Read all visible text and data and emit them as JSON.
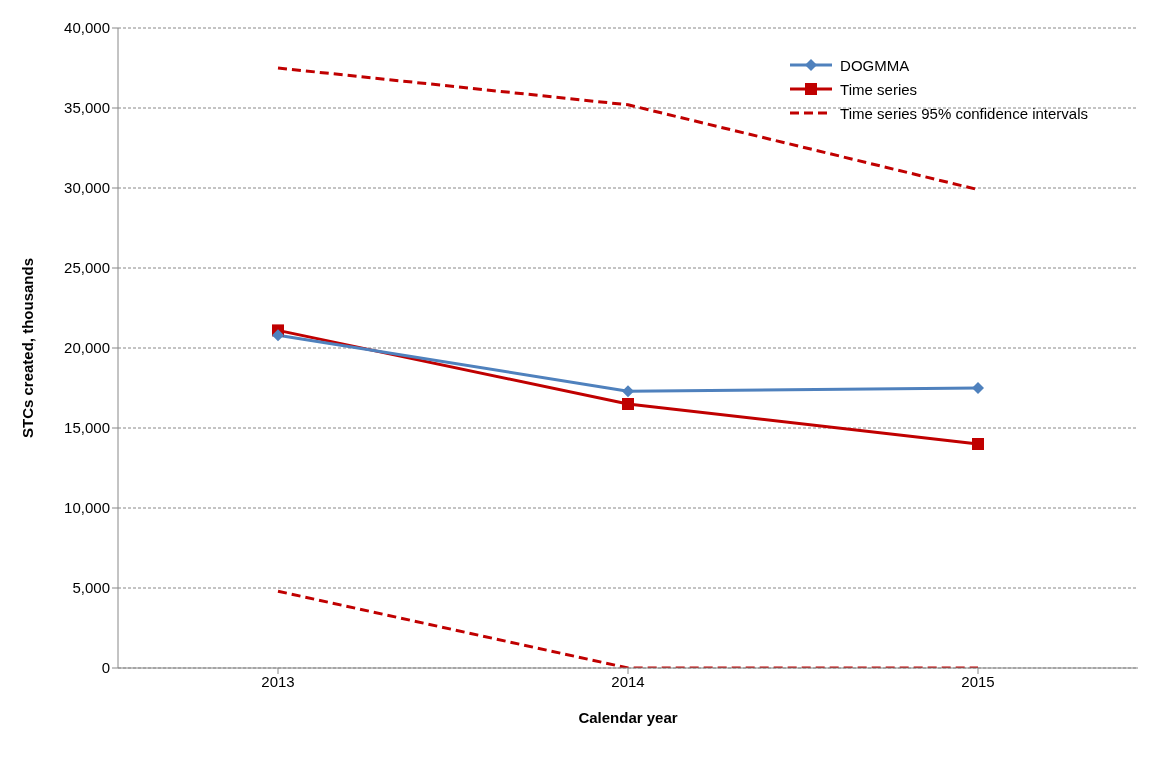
{
  "chart_data": {
    "type": "line",
    "xlabel": "Calendar year",
    "ylabel": "STCs created, thousands",
    "categories": [
      "2013",
      "2014",
      "2015"
    ],
    "series": [
      {
        "name": "DOGMMA",
        "color": "#4f81bd",
        "marker": "diamond",
        "line_style": "solid",
        "values": [
          20800,
          17300,
          17500
        ]
      },
      {
        "name": "Time series",
        "color": "#c00000",
        "marker": "square",
        "line_style": "solid",
        "values": [
          21100,
          16500,
          14000
        ]
      },
      {
        "name": "Time series 95% confidence intervals",
        "color": "#c00000",
        "marker": "none",
        "line_style": "dashed",
        "values": [
          37500,
          35200,
          29900
        ]
      },
      {
        "color": "#c00000",
        "marker": "none",
        "line_style": "dashed",
        "values": [
          4800,
          0,
          0
        ]
      }
    ],
    "ylim": [
      0,
      40000
    ],
    "yticks": [
      0,
      {
        "value": 5000,
        "label": "5,000"
      },
      {
        "value": 10000,
        "label": "10,000"
      },
      {
        "value": 15000,
        "label": "15,000"
      },
      {
        "value": 20000,
        "label": "20,000"
      },
      {
        "value": 25000,
        "label": "25,000"
      },
      {
        "value": 30000,
        "label": "30,000"
      },
      {
        "value": 35000,
        "label": "35,000"
      },
      {
        "value": 40000,
        "label": "40,000"
      }
    ],
    "grid": "y",
    "legend": "top right"
  }
}
